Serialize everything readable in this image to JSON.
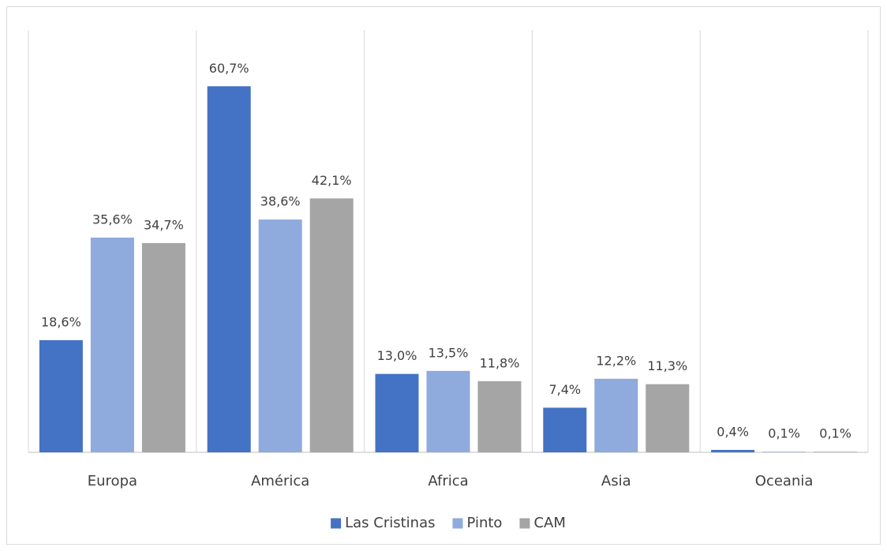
{
  "chart_data": {
    "type": "bar",
    "categories": [
      "Europa",
      "América",
      "Africa",
      "Asia",
      "Oceania"
    ],
    "series": [
      {
        "name": "Las Cristinas",
        "color": "#4472c4",
        "values": [
          18.6,
          60.7,
          13.0,
          7.4,
          0.4
        ],
        "value_labels": [
          "18,6%",
          "60,7%",
          "13,0%",
          "7,4%",
          "0,4%"
        ]
      },
      {
        "name": "Pinto",
        "color": "#8faadc",
        "values": [
          35.6,
          38.6,
          13.5,
          12.2,
          0.1
        ],
        "value_labels": [
          "35,6%",
          "38,6%",
          "13,5%",
          "12,2%",
          "0,1%"
        ]
      },
      {
        "name": "CAM",
        "color": "#a5a5a5",
        "values": [
          34.7,
          42.1,
          11.8,
          11.3,
          0.1
        ],
        "value_labels": [
          "34,7%",
          "42,1%",
          "11,8%",
          "11,3%",
          "0,1%"
        ]
      }
    ],
    "legend": "bottom"
  }
}
